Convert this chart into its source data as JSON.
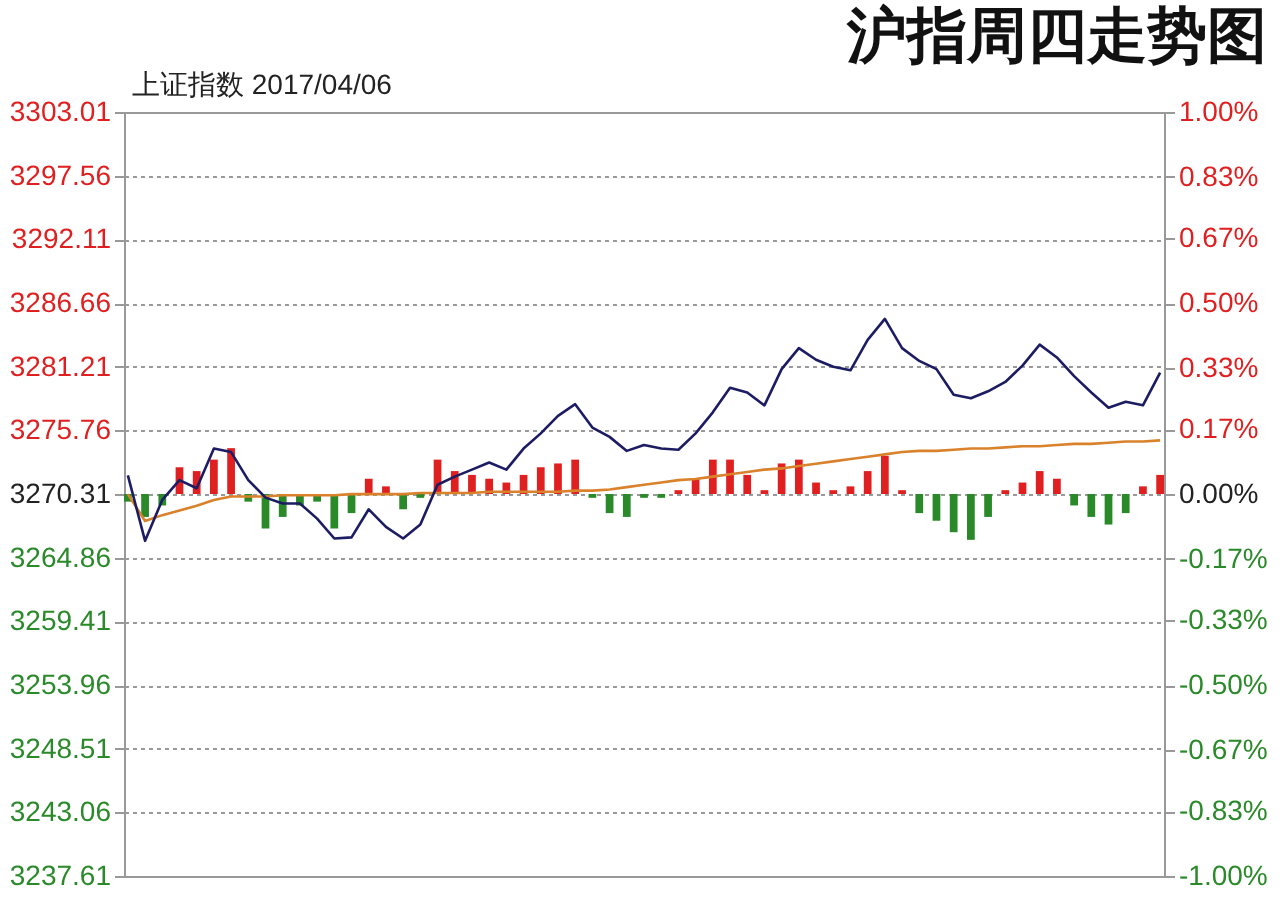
{
  "chart_data": {
    "type": "line",
    "title": "沪指周四走势图",
    "subtitle": "上证指数 2017/04/06",
    "categories": [
      null,
      null,
      null,
      null,
      null,
      null,
      null,
      null,
      null,
      null,
      null,
      null,
      null,
      null,
      null,
      null,
      null,
      null,
      null,
      null,
      null,
      null,
      null,
      null,
      null,
      null,
      null,
      null,
      null,
      null,
      null,
      null,
      null,
      null,
      null,
      null,
      null,
      null,
      null,
      null,
      null,
      null,
      null,
      null,
      null,
      null,
      null,
      null,
      null,
      null,
      null,
      null,
      null,
      null,
      null,
      null,
      null,
      null,
      null,
      null,
      null
    ],
    "ylim": [
      3237.61,
      3303.01
    ],
    "yticks": [
      3237.61,
      3243.06,
      3248.51,
      3253.96,
      3259.41,
      3264.86,
      3270.31,
      3275.76,
      3281.21,
      3286.66,
      3292.11,
      3297.56,
      3303.01
    ],
    "y2lim": [
      -1,
      1
    ],
    "y2ticks": [
      {
        "value": -1,
        "label": "-1.00%"
      },
      {
        "value": -0.83,
        "label": "-0.83%"
      },
      {
        "value": -0.67,
        "label": "-0.67%"
      },
      {
        "value": -0.5,
        "label": "-0.50%"
      },
      {
        "value": -0.33,
        "label": "-0.33%"
      },
      {
        "value": -0.17,
        "label": "-0.17%"
      },
      {
        "value": 0,
        "label": "0.00%"
      },
      {
        "value": 0.17,
        "label": "0.17%"
      },
      {
        "value": 0.33,
        "label": "0.33%"
      },
      {
        "value": 0.5,
        "label": "0.50%"
      },
      {
        "value": 0.67,
        "label": "0.67%"
      },
      {
        "value": 0.83,
        "label": "0.83%"
      },
      {
        "value": 1,
        "label": "1.00%"
      }
    ],
    "grid": "y",
    "tick_labels": "y",
    "series": [
      {
        "type": "bar",
        "axis": "y2",
        "values": [
          -0.02,
          -0.06,
          -0.03,
          0.07,
          0.06,
          0.09,
          0.12,
          -0.02,
          -0.09,
          -0.06,
          -0.03,
          -0.02,
          -0.09,
          -0.05,
          0.04,
          0.02,
          -0.04,
          -0.01,
          0.09,
          0.06,
          0.05,
          0.04,
          0.03,
          0.05,
          0.07,
          0.08,
          0.09,
          -0.01,
          -0.05,
          -0.06,
          -0.01,
          -0.01,
          0.01,
          0.04,
          0.09,
          0.09,
          0.05,
          0.01,
          0.08,
          0.09,
          0.03,
          0.01,
          0.02,
          0.06,
          0.1,
          0.01,
          -0.05,
          -0.07,
          -0.1,
          -0.12,
          -0.06,
          0.01,
          0.03,
          0.06,
          0.04,
          -0.03,
          -0.06,
          -0.08,
          -0.05,
          0.02,
          0.05
        ],
        "colors": [
          "#2a8a2a",
          "#2a8a2a",
          "#2a8a2a",
          "#e02020",
          "#e02020",
          "#e02020",
          "#e02020",
          "#2a8a2a",
          "#2a8a2a",
          "#2a8a2a",
          "#2a8a2a",
          "#2a8a2a",
          "#2a8a2a",
          "#2a8a2a",
          "#e02020",
          "#e02020",
          "#2a8a2a",
          "#2a8a2a",
          "#e02020",
          "#e02020",
          "#e02020",
          "#e02020",
          "#e02020",
          "#e02020",
          "#e02020",
          "#e02020",
          "#e02020",
          "#2a8a2a",
          "#2a8a2a",
          "#2a8a2a",
          "#2a8a2a",
          "#2a8a2a",
          "#e02020",
          "#e02020",
          "#e02020",
          "#e02020",
          "#e02020",
          "#e02020",
          "#e02020",
          "#e02020",
          "#e02020",
          "#e02020",
          "#e02020",
          "#e02020",
          "#e02020",
          "#e02020",
          "#2a8a2a",
          "#2a8a2a",
          "#2a8a2a",
          "#2a8a2a",
          "#2a8a2a",
          "#e02020",
          "#e02020",
          "#e02020",
          "#e02020",
          "#2a8a2a",
          "#2a8a2a",
          "#2a8a2a",
          "#2a8a2a",
          "#e02020",
          "#e02020"
        ]
      },
      {
        "color": "#d9822b",
        "values": [
          3270.3,
          3268.0,
          3268.5,
          3268.9,
          3269.3,
          3269.8,
          3270.1,
          3270.1,
          3270.1,
          3270.2,
          3270.2,
          3270.2,
          3270.2,
          3270.3,
          3270.3,
          3270.3,
          3270.3,
          3270.4,
          3270.4,
          3270.4,
          3270.4,
          3270.5,
          3270.5,
          3270.5,
          3270.5,
          3270.5,
          3270.6,
          3270.6,
          3270.7,
          3270.9,
          3271.1,
          3271.3,
          3271.5,
          3271.6,
          3271.8,
          3272.0,
          3272.2,
          3272.4,
          3272.5,
          3272.7,
          3272.9,
          3273.1,
          3273.3,
          3273.5,
          3273.7,
          3273.9,
          3274.0,
          3274.0,
          3274.1,
          3274.2,
          3274.2,
          3274.3,
          3274.4,
          3274.4,
          3274.5,
          3274.6,
          3274.6,
          3274.7,
          3274.8,
          3274.8,
          3274.9
        ]
      },
      {
        "color": "#1c1c64",
        "values": [
          3271.9,
          3266.3,
          3269.8,
          3271.5,
          3270.8,
          3274.2,
          3273.9,
          3271.5,
          3270.0,
          3269.5,
          3269.5,
          3268.2,
          3266.5,
          3266.6,
          3269.0,
          3267.5,
          3266.5,
          3267.7,
          3271.1,
          3271.8,
          3272.4,
          3273.0,
          3272.4,
          3274.2,
          3275.5,
          3277.0,
          3278.0,
          3276.0,
          3275.2,
          3274.0,
          3274.5,
          3274.2,
          3274.1,
          3275.5,
          3277.3,
          3279.4,
          3279.0,
          3277.9,
          3281.0,
          3282.8,
          3281.8,
          3281.2,
          3280.9,
          3283.5,
          3285.3,
          3282.8,
          3281.7,
          3281.0,
          3278.8,
          3278.5,
          3279.1,
          3279.9,
          3281.3,
          3283.1,
          3282.0,
          3280.4,
          3279.0,
          3277.7,
          3278.2,
          3277.9,
          3280.7
        ]
      }
    ]
  }
}
